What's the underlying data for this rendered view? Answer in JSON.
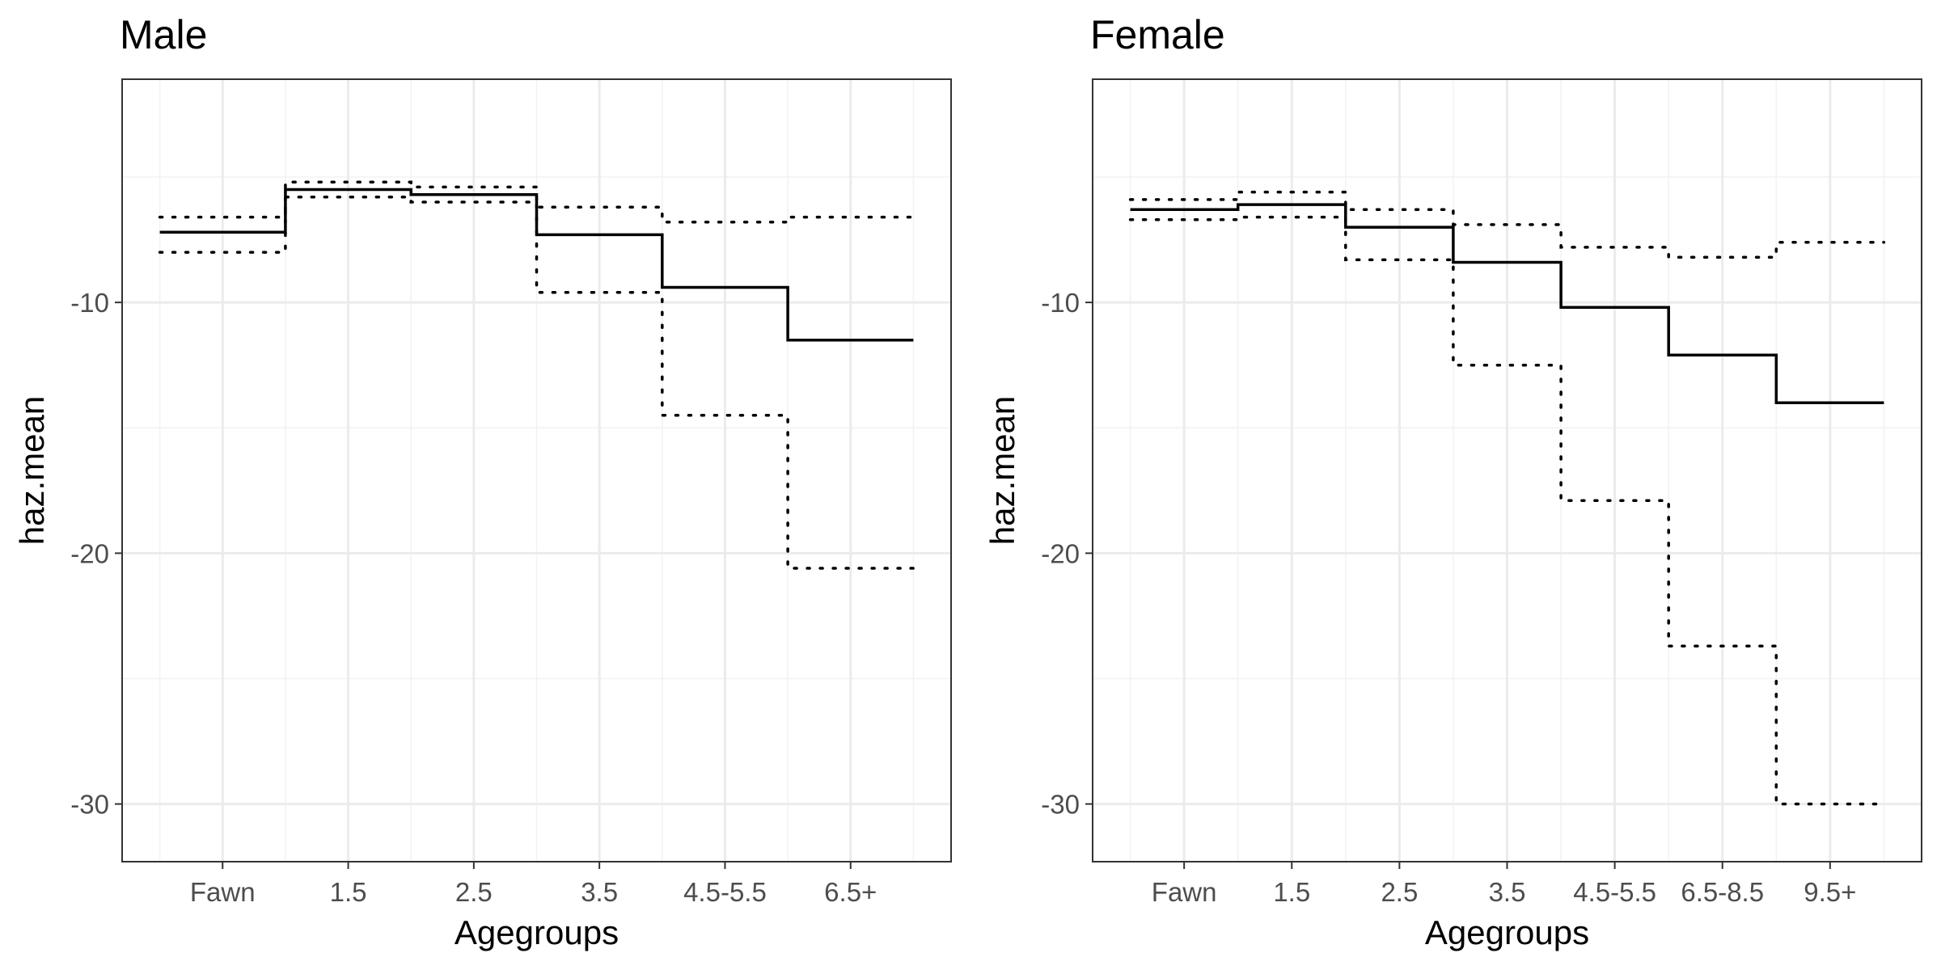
{
  "chart_data": [
    {
      "type": "line",
      "title": "Male",
      "xlabel": "Agegroups",
      "ylabel": "haz.mean",
      "categories": [
        "Fawn",
        "1.5",
        "2.5",
        "3.5",
        "4.5-5.5",
        "6.5+"
      ],
      "y_ticks": [
        -30,
        -20,
        -10
      ],
      "ylim": [
        -32.3,
        -1.1
      ],
      "grid": true,
      "series": [
        {
          "role": "mean",
          "style": "solid",
          "values": [
            -7.2,
            -5.5,
            -5.7,
            -7.3,
            -9.4,
            -11.5
          ]
        },
        {
          "role": "upper",
          "style": "dotted",
          "values": [
            -6.6,
            -5.2,
            -5.4,
            -6.2,
            -6.8,
            -6.6
          ]
        },
        {
          "role": "lower",
          "style": "dotted",
          "values": [
            -8.0,
            -5.8,
            -6.0,
            -9.6,
            -14.5,
            -20.6
          ]
        }
      ]
    },
    {
      "type": "line",
      "title": "Female",
      "xlabel": "Agegroups",
      "ylabel": "haz.mean",
      "categories": [
        "Fawn",
        "1.5",
        "2.5",
        "3.5",
        "4.5-5.5",
        "6.5-8.5",
        "9.5+"
      ],
      "y_ticks": [
        -30,
        -20,
        -10
      ],
      "ylim": [
        -32.3,
        -1.1
      ],
      "grid": true,
      "series": [
        {
          "role": "mean",
          "style": "solid",
          "values": [
            -6.3,
            -6.1,
            -7.0,
            -8.4,
            -10.2,
            -12.1,
            -14.0
          ]
        },
        {
          "role": "upper",
          "style": "dotted",
          "values": [
            -5.9,
            -5.6,
            -6.3,
            -6.9,
            -7.8,
            -8.2,
            -7.6
          ]
        },
        {
          "role": "lower",
          "style": "dotted",
          "values": [
            -6.7,
            -6.6,
            -8.3,
            -12.5,
            -17.9,
            -23.7,
            -30.0
          ]
        }
      ]
    }
  ]
}
